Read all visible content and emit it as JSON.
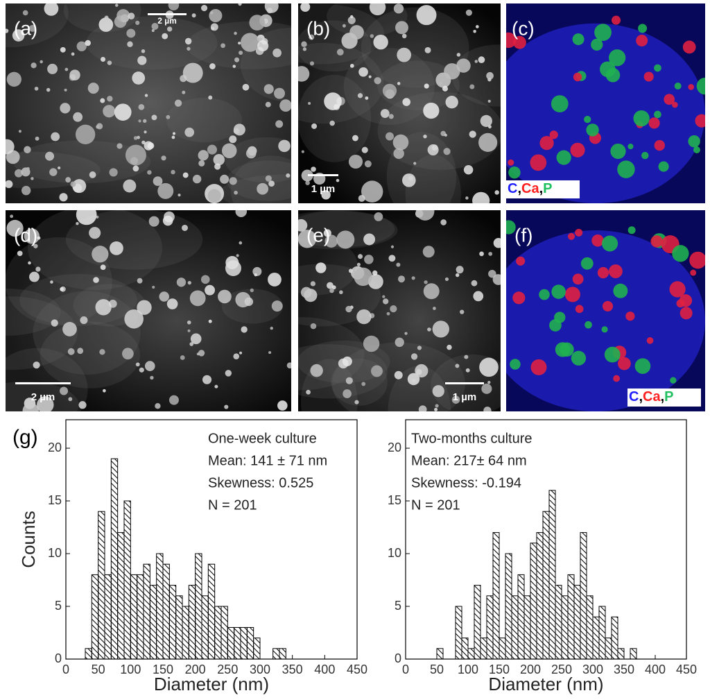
{
  "panels": [
    {
      "label": "(a)",
      "scale_bar": "2 µm"
    },
    {
      "label": "(b)",
      "scale_bar": "1 µm"
    },
    {
      "label": "(c)",
      "legend": {
        "items": [
          {
            "text": "C",
            "color": "#1f1fff"
          },
          {
            "text": "Ca",
            "color": "#ff2020"
          },
          {
            "text": "P",
            "color": "#20c060"
          }
        ],
        "separator": ","
      }
    },
    {
      "label": "(d)",
      "scale_bar": "2 µm"
    },
    {
      "label": "(e)",
      "scale_bar": "1 µm"
    },
    {
      "label": "(f)",
      "legend": {
        "items": [
          {
            "text": "C",
            "color": "#1f1fff"
          },
          {
            "text": "Ca",
            "color": "#ff2020"
          },
          {
            "text": "P",
            "color": "#20c060"
          }
        ],
        "separator": ","
      }
    }
  ],
  "figure_label": "(g)",
  "chart_data": [
    {
      "type": "histogram",
      "annotations": [
        "One-week culture",
        "Mean: 141 ± 71 nm",
        "Skewness: 0.525",
        "N = 201"
      ],
      "xlabel": "Diameter (nm)",
      "ylabel": "Counts",
      "bins": [
        30,
        40,
        50,
        60,
        70,
        80,
        90,
        100,
        110,
        120,
        130,
        140,
        150,
        160,
        170,
        180,
        190,
        200,
        210,
        220,
        230,
        240,
        250,
        260,
        270,
        280,
        290,
        300,
        310,
        320,
        330,
        340
      ],
      "values": [
        1,
        8,
        14,
        8,
        19,
        12,
        15,
        8,
        8,
        9,
        7,
        10,
        9,
        7,
        6,
        5,
        7,
        10,
        6,
        9,
        5,
        5,
        3,
        3,
        3,
        3,
        2,
        0,
        0,
        1,
        1
      ],
      "hatch": true,
      "color": "#000000",
      "xlim": [
        0,
        450
      ],
      "xticks": [
        0,
        50,
        100,
        150,
        200,
        250,
        300,
        350,
        400,
        450
      ],
      "ylim": [
        0,
        22.7
      ],
      "yticks": [
        0,
        5,
        10,
        15,
        20
      ]
    },
    {
      "type": "histogram",
      "annotations": [
        "Two-months culture",
        "Mean: 217± 64 nm",
        "Skewness: -0.194",
        "N = 201"
      ],
      "xlabel": "Diameter (nm)",
      "bins": [
        50,
        60,
        70,
        80,
        90,
        100,
        110,
        120,
        130,
        140,
        150,
        160,
        170,
        180,
        190,
        200,
        210,
        220,
        230,
        240,
        250,
        260,
        270,
        280,
        290,
        300,
        310,
        320,
        330,
        340,
        350,
        360,
        370
      ],
      "values": [
        1,
        0,
        0,
        5,
        2,
        1,
        7,
        2,
        6,
        12,
        2,
        10,
        6,
        8,
        6,
        11,
        12,
        14,
        16,
        7,
        6,
        8,
        7,
        12,
        6,
        4,
        5,
        2,
        4,
        1,
        0,
        1
      ],
      "hatch": true,
      "color": "#000000",
      "xlim": [
        0,
        450
      ],
      "xticks": [
        0,
        50,
        100,
        150,
        200,
        250,
        300,
        350,
        400,
        450
      ],
      "ylim": [
        0,
        22.7
      ],
      "yticks": [
        0,
        5,
        10,
        15,
        20
      ]
    }
  ]
}
